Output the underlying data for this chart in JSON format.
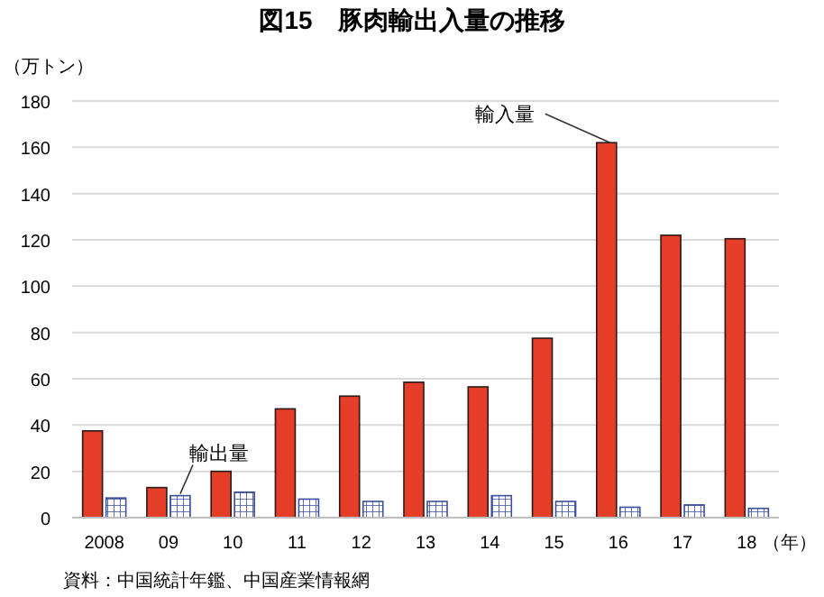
{
  "chart_data": {
    "type": "bar",
    "title": "図15　豚肉輸出入量の推移",
    "categories": [
      "2008",
      "09",
      "10",
      "11",
      "12",
      "13",
      "14",
      "15",
      "16",
      "17",
      "18"
    ],
    "series": [
      {
        "color": "#e43d28",
        "values": [
          37.5,
          13,
          20,
          47,
          52.5,
          58.5,
          56.5,
          77.5,
          162,
          122,
          120.5
        ]
      },
      {
        "color": "#3b4f9c",
        "values": [
          8.5,
          9.5,
          11,
          8,
          7,
          7,
          9.5,
          7,
          4.5,
          5.5,
          4
        ]
      }
    ],
    "ylabel": "（万トン）",
    "xlabel": "（年）",
    "ylim": [
      0,
      180
    ],
    "yticks": [
      0,
      20,
      40,
      60,
      80,
      100,
      120,
      140,
      160,
      180
    ],
    "grid": "y",
    "annotations": [
      {
        "text": "輸入量",
        "x": "16",
        "y": 162
      },
      {
        "text": "輸出量",
        "x": "09",
        "y": 9.5
      },
      "資料：中国統計年鑑、中国産業情報網"
    ]
  }
}
